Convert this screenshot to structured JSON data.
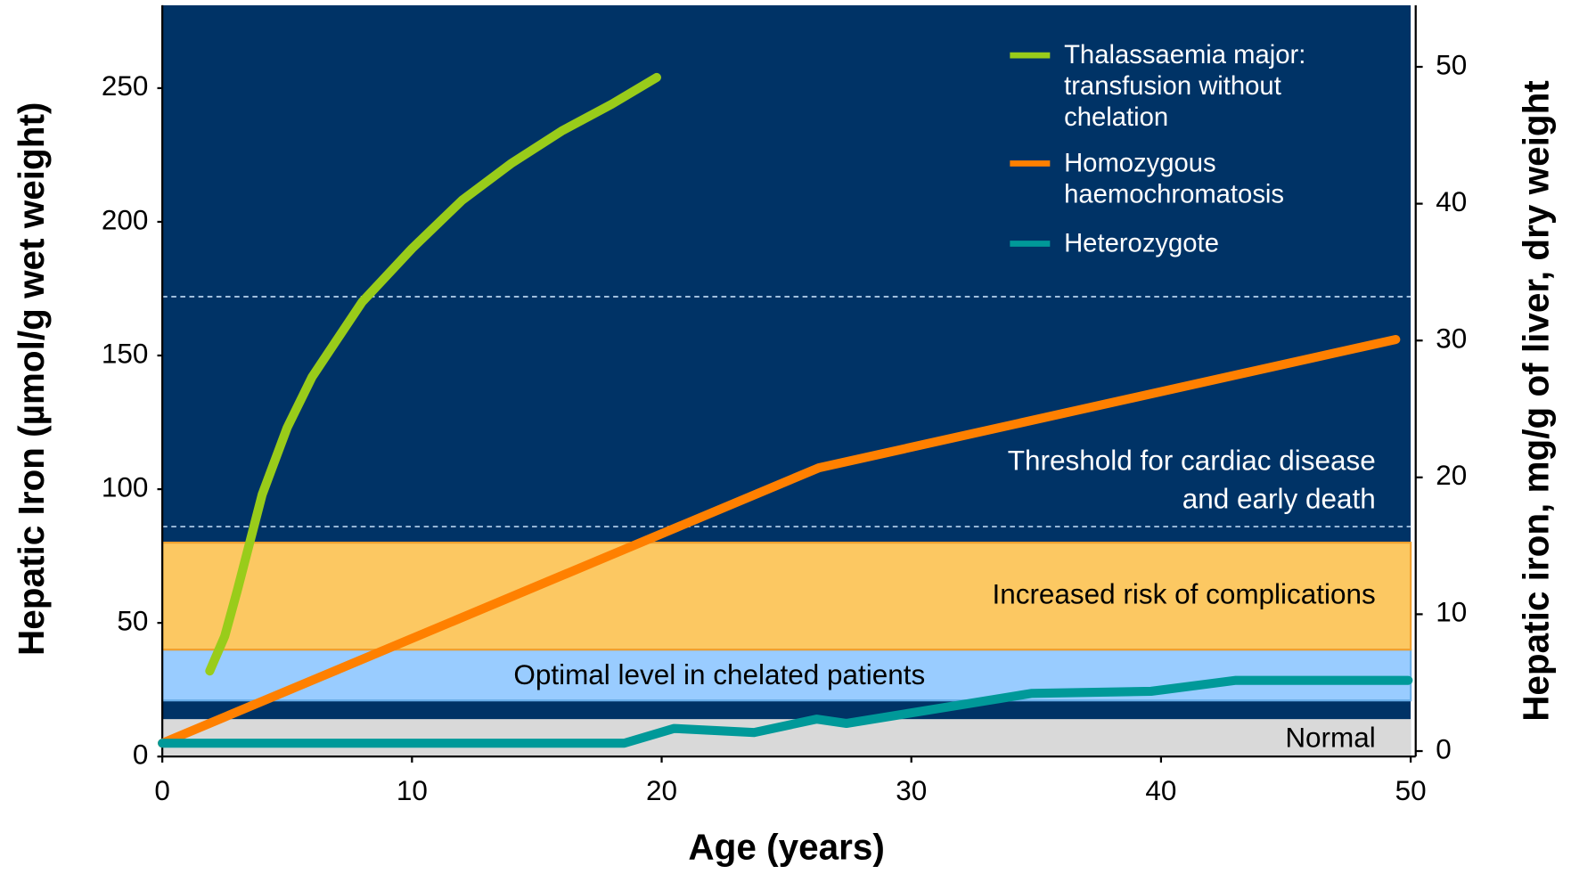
{
  "chart_data": {
    "type": "line",
    "x_label": "Age (years)",
    "y_label": "Hepatic Iron (µmol/g wet weight)",
    "y2_label": "Hepatic iron, mg/g of liver, dry weight",
    "xlim": [
      0,
      50
    ],
    "xticks": [
      0,
      10,
      20,
      30,
      40,
      50
    ],
    "ylim": [
      0,
      281
    ],
    "yticks": [
      0,
      50,
      100,
      150,
      200,
      250
    ],
    "y2lim": [
      -0.4,
      54.5
    ],
    "y2ticks": [
      0,
      10,
      20,
      30,
      40,
      50
    ],
    "background": "#003366",
    "bands": [
      {
        "label": "Normal",
        "from": 0,
        "to": 14,
        "color": "#d9d9d9"
      },
      {
        "label": "Optimal level in chelated patients",
        "from": 21,
        "to": 40,
        "color": "#99ccff"
      },
      {
        "label": "Increased risk of complications",
        "from": 40,
        "to": 80,
        "color": "#fcc862"
      }
    ],
    "threshold_lines": [
      86,
      172
    ],
    "threshold_label": "Threshold for cardiac disease and early death",
    "series": [
      {
        "name": "Thalassaemia major: transfusion without chelation",
        "color": "#99cc1a",
        "x": [
          1.9,
          2.5,
          3.0,
          3.5,
          4,
          5,
          6,
          8,
          10,
          12,
          14,
          16,
          18,
          19.8
        ],
        "values": [
          32,
          45,
          62,
          80,
          98,
          123,
          142,
          170,
          190,
          208,
          222,
          234,
          244,
          254
        ]
      },
      {
        "name": "Homozygous haemochromatosis",
        "color": "#ff8000",
        "x": [
          0,
          26.3,
          49.4
        ],
        "values": [
          5,
          108,
          156
        ]
      },
      {
        "name": "Heterozygote",
        "color": "#009999",
        "x": [
          0,
          18.5,
          20.5,
          23.7,
          26.2,
          27.4,
          34.8,
          39.6,
          43,
          49.9
        ],
        "values": [
          5,
          5,
          10.5,
          9,
          14,
          12.4,
          23.6,
          24.4,
          28.5,
          28.5
        ]
      }
    ]
  }
}
